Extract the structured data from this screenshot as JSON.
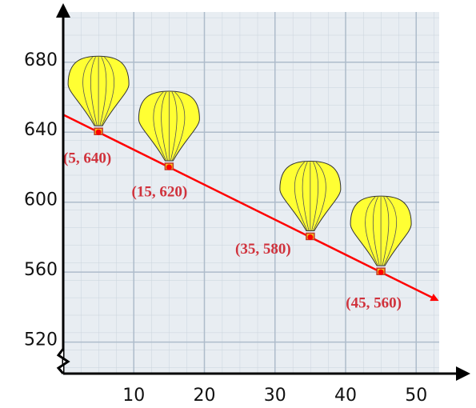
{
  "chart_data": {
    "type": "scatter",
    "xlim": [
      0,
      57
    ],
    "ylim": [
      502,
      711
    ],
    "xticks": [
      10,
      20,
      30,
      40,
      50
    ],
    "yticks": [
      520,
      560,
      600,
      640,
      680
    ],
    "grid": true,
    "series": [
      {
        "type": "line",
        "color": "#ff0000",
        "x": [
          0,
          53
        ],
        "values": [
          650,
          544
        ]
      },
      {
        "type": "scatter",
        "color": "#ffff33",
        "x": [
          5,
          15,
          35,
          45
        ],
        "values": [
          640,
          620,
          580,
          560
        ],
        "value_labels": [
          "(5, 640)",
          "(15, 620)",
          "(35, 580)",
          "(45, 560)"
        ]
      }
    ]
  }
}
